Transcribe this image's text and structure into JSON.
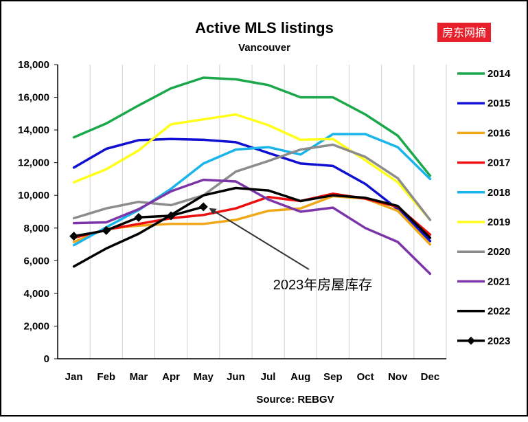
{
  "badge": "房东网摘",
  "chart_data": {
    "type": "line",
    "title": "Active MLS listings",
    "subtitle": "Vancouver",
    "xlabel": "Source: REBGV",
    "ylabel": "",
    "categories": [
      "Jan",
      "Feb",
      "Mar",
      "Apr",
      "May",
      "Jun",
      "Jul",
      "Aug",
      "Sep",
      "Oct",
      "Nov",
      "Dec"
    ],
    "ylim": [
      0,
      18000
    ],
    "yticks": [
      0,
      2000,
      4000,
      6000,
      8000,
      10000,
      12000,
      14000,
      16000,
      18000
    ],
    "ytick_labels": [
      "0",
      "2,000",
      "4,000",
      "6,000",
      "8,000",
      "10,000",
      "12,000",
      "14,000",
      "16,000",
      "18,000"
    ],
    "grid": "vertical",
    "legend_position": "right",
    "annotation": {
      "text": "2023年房屋库存",
      "points_to": {
        "series": "2023",
        "category": "May"
      }
    },
    "series": [
      {
        "name": "2014",
        "color": "#1aa84b",
        "values": [
          13550,
          14400,
          15500,
          16550,
          17200,
          17100,
          16750,
          16000,
          16000,
          14950,
          13650,
          11200
        ]
      },
      {
        "name": "2015",
        "color": "#1010d0",
        "values": [
          11700,
          12850,
          13380,
          13450,
          13400,
          13250,
          12600,
          11950,
          11800,
          10700,
          9150,
          7200
        ]
      },
      {
        "name": "2016",
        "color": "#f0a818",
        "values": [
          7150,
          7950,
          8150,
          8250,
          8250,
          8500,
          9050,
          9200,
          9950,
          9800,
          9050,
          7000
        ]
      },
      {
        "name": "2017",
        "color": "#ee1010",
        "values": [
          7400,
          7900,
          8250,
          8600,
          8800,
          9200,
          9900,
          9650,
          10100,
          9800,
          9300,
          7600
        ]
      },
      {
        "name": "2018",
        "color": "#19b5ea",
        "values": [
          6950,
          8050,
          9100,
          10400,
          11950,
          12800,
          12950,
          12500,
          13750,
          13750,
          12950,
          11000
        ]
      },
      {
        "name": "2019",
        "color": "#ffff1a",
        "values": [
          10800,
          11600,
          12750,
          14350,
          14650,
          14950,
          14300,
          13400,
          13450,
          12150,
          10800,
          8500
        ]
      },
      {
        "name": "2020",
        "color": "#8c8c8c",
        "values": [
          8600,
          9200,
          9600,
          9400,
          10000,
          11450,
          12100,
          12800,
          13100,
          12350,
          11050,
          8500
        ]
      },
      {
        "name": "2021",
        "color": "#7b35a8",
        "values": [
          8300,
          8350,
          9150,
          10250,
          10950,
          10850,
          9750,
          9000,
          9250,
          8000,
          7150,
          5200
        ]
      },
      {
        "name": "2022",
        "color": "#000000",
        "values": [
          5650,
          6750,
          7650,
          8800,
          10000,
          10450,
          10300,
          9650,
          10000,
          9850,
          9350,
          7400
        ]
      },
      {
        "name": "2023",
        "color": "#000000",
        "marker": "diamond",
        "values": [
          7500,
          7850,
          8650,
          8750,
          9300,
          null,
          null,
          null,
          null,
          null,
          null,
          null
        ]
      }
    ]
  }
}
